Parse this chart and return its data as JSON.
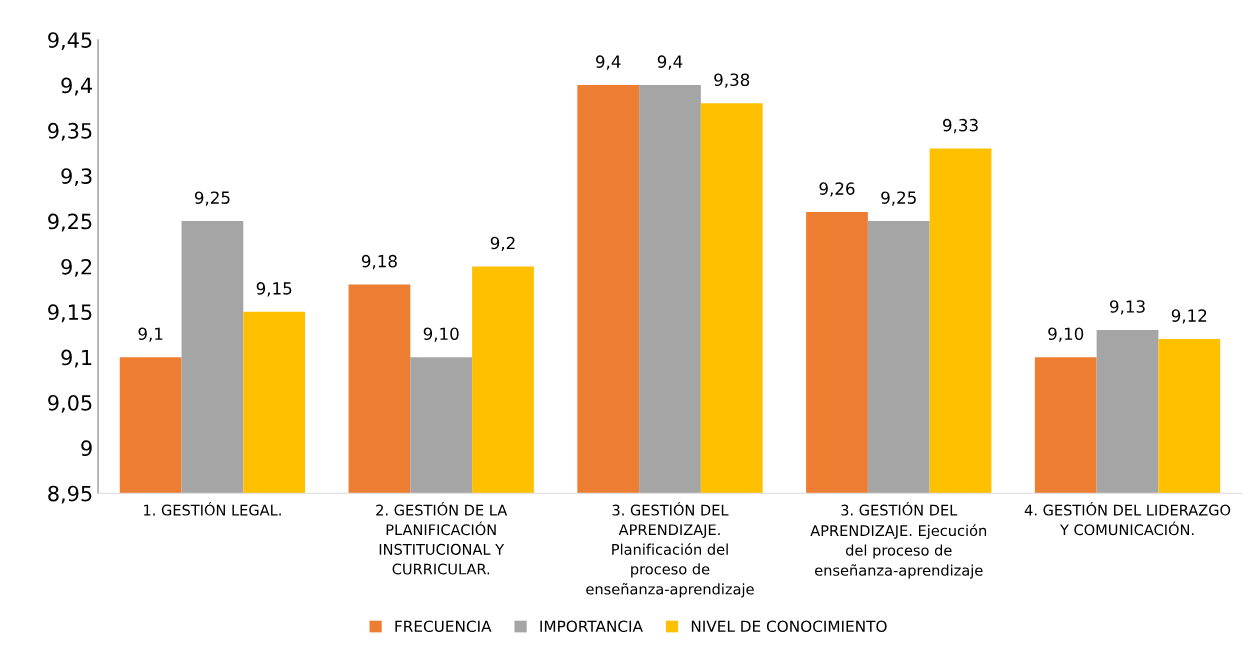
{
  "chart_data": {
    "type": "bar",
    "categories": [
      "1. GESTIÓN LEGAL.",
      "2. GESTIÓN DE LA PLANIFICACIÓN INSTITUCIONAL Y CURRICULAR.",
      "3. GESTIÓN DEL APRENDIZAJE. Planificación del proceso de enseñanza-aprendizaje",
      "3. GESTIÓN DEL APRENDIZAJE. Ejecución del proceso de enseñanza-aprendizaje",
      "4. GESTIÓN DEL LIDERAZGO Y COMUNICACIÓN."
    ],
    "series": [
      {
        "name": "FRECUENCIA",
        "color": "#ed7d31",
        "values": [
          9.1,
          9.18,
          9.4,
          9.26,
          9.1
        ],
        "value_labels": [
          "9,1",
          "9,18",
          "9,4",
          "9,26",
          "9,10"
        ]
      },
      {
        "name": "IMPORTANCIA",
        "color": "#a5a5a5",
        "values": [
          9.25,
          9.1,
          9.4,
          9.25,
          9.13
        ],
        "value_labels": [
          "9,25",
          "9,10",
          "9,4",
          "9,25",
          "9,13"
        ]
      },
      {
        "name": "NIVEL DE CONOCIMIENTO",
        "color": "#ffc000",
        "values": [
          9.15,
          9.2,
          9.38,
          9.33,
          9.12
        ],
        "value_labels": [
          "9,15",
          "9,2",
          "9,38",
          "9,33",
          "9,12"
        ]
      }
    ],
    "ylim": [
      8.95,
      9.45
    ],
    "yticks": [
      {
        "value": 8.95,
        "label": "8,95"
      },
      {
        "value": 9.0,
        "label": "9"
      },
      {
        "value": 9.05,
        "label": "9,05"
      },
      {
        "value": 9.1,
        "label": "9,1"
      },
      {
        "value": 9.15,
        "label": "9,15"
      },
      {
        "value": 9.2,
        "label": "9,2"
      },
      {
        "value": 9.25,
        "label": "9,25"
      },
      {
        "value": 9.3,
        "label": "9,3"
      },
      {
        "value": 9.35,
        "label": "9,35"
      },
      {
        "value": 9.4,
        "label": "9,4"
      },
      {
        "value": 9.45,
        "label": "9,45"
      }
    ],
    "grid": false,
    "legend": "bottom"
  }
}
